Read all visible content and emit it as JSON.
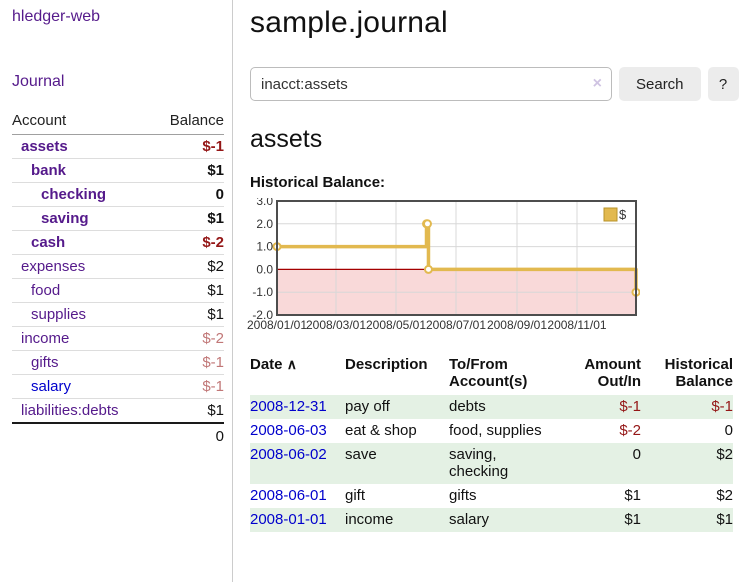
{
  "brand": "hledger-web",
  "nav": {
    "journal_label": "Journal"
  },
  "sidebar_table": {
    "account_header": "Account",
    "balance_header": "Balance",
    "accounts": [
      {
        "name": "assets",
        "depth": 1,
        "bold": true,
        "balance": "$-1",
        "balance_style": "neg-strong",
        "link_style": ""
      },
      {
        "name": "bank",
        "depth": 2,
        "bold": true,
        "balance": "$1",
        "balance_style": "pos",
        "link_style": ""
      },
      {
        "name": "checking",
        "depth": 3,
        "bold": true,
        "balance": "0",
        "balance_style": "pos",
        "link_style": ""
      },
      {
        "name": "saving",
        "depth": 3,
        "bold": true,
        "balance": "$1",
        "balance_style": "pos",
        "link_style": ""
      },
      {
        "name": "cash",
        "depth": 2,
        "bold": true,
        "balance": "$-2",
        "balance_style": "neg-strong",
        "link_style": ""
      },
      {
        "name": "expenses",
        "depth": 1,
        "bold": false,
        "balance": "$2",
        "balance_style": "pos",
        "link_style": ""
      },
      {
        "name": "food",
        "depth": 2,
        "bold": false,
        "balance": "$1",
        "balance_style": "pos",
        "link_style": ""
      },
      {
        "name": "supplies",
        "depth": 2,
        "bold": false,
        "balance": "$1",
        "balance_style": "pos",
        "link_style": ""
      },
      {
        "name": "income",
        "depth": 1,
        "bold": false,
        "balance": "$-2",
        "balance_style": "neg-soft",
        "link_style": ""
      },
      {
        "name": "gifts",
        "depth": 2,
        "bold": false,
        "balance": "$-1",
        "balance_style": "neg-soft",
        "link_style": ""
      },
      {
        "name": "salary",
        "depth": 2,
        "bold": false,
        "balance": "$-1",
        "balance_style": "neg-soft",
        "link_style": "blue"
      },
      {
        "name": "liabilities:debts",
        "depth": 1,
        "bold": false,
        "balance": "$1",
        "balance_style": "pos",
        "link_style": ""
      }
    ],
    "total": "0"
  },
  "header": {
    "title": "sample.journal"
  },
  "search": {
    "value": "inacct:assets",
    "clear_icon": "×",
    "button_label": "Search",
    "help_label": "?"
  },
  "account_page": {
    "title": "assets",
    "chart_label": "Historical Balance:"
  },
  "chart_data": {
    "type": "line",
    "step": true,
    "title": "Historical Balance",
    "series": [
      {
        "name": "$",
        "x": [
          "2008-01-01",
          "2008-06-01",
          "2008-06-02",
          "2008-06-03",
          "2008-12-31"
        ],
        "values": [
          1,
          2,
          2,
          0,
          -1
        ]
      }
    ],
    "x_ticks": [
      "2008/01/01",
      "2008/03/01",
      "2008/05/01",
      "2008/07/01",
      "2008/09/01",
      "2008/11/01"
    ],
    "y_ticks": [
      3.0,
      2.0,
      1.0,
      0.0,
      -1.0,
      -2.0
    ],
    "ylim": [
      -2,
      3
    ],
    "x_range": [
      "2008-01-01",
      "2008-12-31"
    ],
    "grid": true,
    "legend_position": "top-right",
    "legend": "$",
    "colors": {
      "line": "#e2b94f",
      "marker_fill": "#ffffff",
      "negative_fill": "#f9d9d9",
      "zero_line": "#a40000",
      "grid": "#d8d8d8",
      "border": "#4d4d4d",
      "tick_text": "#333333"
    }
  },
  "register": {
    "sort_icon": "∧",
    "headers": {
      "date": "Date",
      "description": "Description",
      "tofrom": "To/From Account(s)",
      "amount": "Amount Out/In",
      "balance": "Historical Balance"
    },
    "rows": [
      {
        "date": "2008-12-31",
        "description": "pay off",
        "tofrom": "debts",
        "amount": "$-1",
        "balance": "$-1"
      },
      {
        "date": "2008-06-03",
        "description": "eat & shop",
        "tofrom": "food, supplies",
        "amount": "$-2",
        "balance": "0"
      },
      {
        "date": "2008-06-02",
        "description": "save",
        "tofrom": "saving, checking",
        "amount": "0",
        "balance": "$2"
      },
      {
        "date": "2008-06-01",
        "description": "gift",
        "tofrom": "gifts",
        "amount": "$1",
        "balance": "$2"
      },
      {
        "date": "2008-01-01",
        "description": "income",
        "tofrom": "salary",
        "amount": "$1",
        "balance": "$1"
      }
    ]
  }
}
